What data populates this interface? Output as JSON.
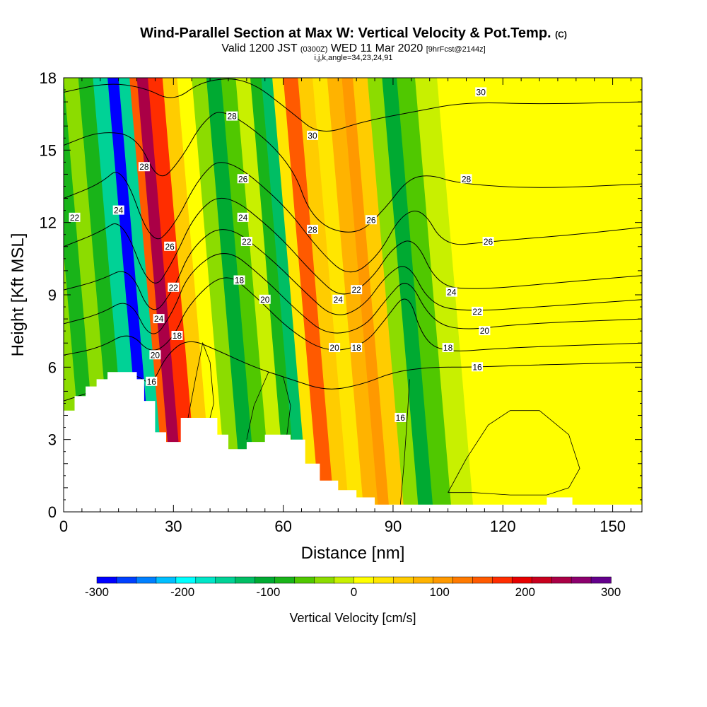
{
  "title": {
    "main": "Wind-Parallel Section at Max W: Vertical Velocity & Pot.Temp.",
    "main_unit": "(C)",
    "valid_prefix": "Valid 1200 JST",
    "valid_utc": "(0300Z)",
    "valid_date": "WED 11 Mar 2020",
    "fcst": "[9hrFcst@2144z]",
    "indices": "i,j,k,angle=34,23,24,91"
  },
  "chart_data": {
    "type": "heatmap",
    "xlabel": "Distance [nm]",
    "ylabel": "Height [Kft MSL]",
    "xlim": [
      0,
      158
    ],
    "ylim": [
      0,
      18
    ],
    "xticks": [
      "0",
      "30",
      "60",
      "90",
      "120",
      "150"
    ],
    "yticks": [
      "0",
      "3",
      "6",
      "9",
      "12",
      "15",
      "18"
    ],
    "colorbar": {
      "title": "Vertical Velocity [cm/s]",
      "range": [
        -300,
        300
      ],
      "tick_labels": [
        "-300",
        "-200",
        "-100",
        "0",
        "100",
        "200",
        "300"
      ],
      "colors": [
        "#0000ff",
        "#0040ff",
        "#0080ff",
        "#00bfff",
        "#00ffff",
        "#00e6c8",
        "#00d296",
        "#00be64",
        "#00aa32",
        "#19b419",
        "#50c800",
        "#8cdc00",
        "#c8f000",
        "#ffff00",
        "#ffe600",
        "#ffcc00",
        "#ffb300",
        "#ff9900",
        "#ff7a00",
        "#ff5a00",
        "#ff2d00",
        "#e60000",
        "#c8001e",
        "#aa0046",
        "#8c006e",
        "#64008c"
      ]
    },
    "velocity_bands": [
      {
        "x": 0,
        "w": -40
      },
      {
        "x": 6,
        "w": -70
      },
      {
        "x": 10,
        "w": -30
      },
      {
        "x": 14,
        "w": -90
      },
      {
        "x": 18,
        "w": -160
      },
      {
        "x": 22,
        "w": -280
      },
      {
        "x": 25,
        "w": -150
      },
      {
        "x": 28,
        "w": 150
      },
      {
        "x": 30,
        "w": 250
      },
      {
        "x": 33,
        "w": 170
      },
      {
        "x": 37,
        "w": 60
      },
      {
        "x": 41,
        "w": 20
      },
      {
        "x": 45,
        "w": -40
      },
      {
        "x": 49,
        "w": -110
      },
      {
        "x": 53,
        "w": -60
      },
      {
        "x": 57,
        "w": -20
      },
      {
        "x": 61,
        "w": -80
      },
      {
        "x": 64,
        "w": -130
      },
      {
        "x": 67,
        "w": 40
      },
      {
        "x": 70,
        "w": 150
      },
      {
        "x": 74,
        "w": 60
      },
      {
        "x": 78,
        "w": 30
      },
      {
        "x": 82,
        "w": 70
      },
      {
        "x": 86,
        "w": 110
      },
      {
        "x": 89,
        "w": 60
      },
      {
        "x": 93,
        "w": -30
      },
      {
        "x": 97,
        "w": -100
      },
      {
        "x": 101,
        "w": -60
      },
      {
        "x": 106,
        "w": -10
      },
      {
        "x": 112,
        "w": 5
      },
      {
        "x": 125,
        "w": 0
      },
      {
        "x": 140,
        "w": 10
      },
      {
        "x": 158,
        "w": 0
      }
    ],
    "terrain": [
      [
        0,
        4.2
      ],
      [
        3,
        4.2
      ],
      [
        3,
        4.8
      ],
      [
        6,
        4.8
      ],
      [
        6,
        5.2
      ],
      [
        9,
        5.2
      ],
      [
        9,
        5.5
      ],
      [
        12,
        5.5
      ],
      [
        12,
        5.8
      ],
      [
        20,
        5.8
      ],
      [
        20,
        5.5
      ],
      [
        22,
        5.5
      ],
      [
        22,
        4.6
      ],
      [
        25,
        4.6
      ],
      [
        25,
        3.3
      ],
      [
        28,
        3.3
      ],
      [
        28,
        2.9
      ],
      [
        32,
        2.9
      ],
      [
        32,
        3.9
      ],
      [
        42,
        3.9
      ],
      [
        42,
        3.2
      ],
      [
        45,
        3.2
      ],
      [
        45,
        2.6
      ],
      [
        50,
        2.6
      ],
      [
        50,
        2.9
      ],
      [
        55,
        2.9
      ],
      [
        55,
        3.2
      ],
      [
        62,
        3.2
      ],
      [
        62,
        3.0
      ],
      [
        66,
        3.0
      ],
      [
        66,
        2.0
      ],
      [
        70,
        2.0
      ],
      [
        70,
        1.3
      ],
      [
        75,
        1.3
      ],
      [
        75,
        0.9
      ],
      [
        80,
        0.9
      ],
      [
        80,
        0.6
      ],
      [
        85,
        0.6
      ],
      [
        85,
        0.3
      ],
      [
        132,
        0.3
      ],
      [
        132,
        0.6
      ],
      [
        139,
        0.6
      ],
      [
        139,
        0.3
      ],
      [
        158,
        0.3
      ]
    ],
    "theta_contours": [
      {
        "label": "16",
        "points": [
          [
            0,
            4.6
          ],
          [
            10,
            5.1
          ],
          [
            19,
            5.8
          ],
          [
            24,
            5.2
          ],
          [
            28,
            6.5
          ],
          [
            34,
            7.2
          ],
          [
            42,
            6.7
          ],
          [
            52,
            6.0
          ],
          [
            62,
            5.5
          ],
          [
            72,
            5.0
          ],
          [
            82,
            5.3
          ],
          [
            90,
            5.8
          ],
          [
            100,
            6.0
          ],
          [
            112,
            6.0
          ],
          [
            130,
            6.1
          ],
          [
            158,
            6.2
          ]
        ]
      },
      {
        "label": "18",
        "points": [
          [
            0,
            6.5
          ],
          [
            10,
            6.8
          ],
          [
            18,
            7.5
          ],
          [
            24,
            6.5
          ],
          [
            30,
            7.2
          ],
          [
            34,
            8.6
          ],
          [
            44,
            10.0
          ],
          [
            52,
            9.0
          ],
          [
            62,
            7.5
          ],
          [
            72,
            6.6
          ],
          [
            82,
            6.9
          ],
          [
            88,
            8.0
          ],
          [
            94,
            9.2
          ],
          [
            98,
            7.2
          ],
          [
            104,
            6.6
          ],
          [
            120,
            6.8
          ],
          [
            158,
            7.0
          ]
        ]
      },
      {
        "label": "20",
        "points": [
          [
            0,
            7.8
          ],
          [
            10,
            8.2
          ],
          [
            18,
            8.9
          ],
          [
            24,
            7.0
          ],
          [
            30,
            8.3
          ],
          [
            34,
            9.9
          ],
          [
            44,
            11.0
          ],
          [
            54,
            9.8
          ],
          [
            64,
            8.3
          ],
          [
            72,
            7.3
          ],
          [
            82,
            7.6
          ],
          [
            88,
            8.8
          ],
          [
            94,
            9.8
          ],
          [
            100,
            8.0
          ],
          [
            108,
            7.5
          ],
          [
            125,
            7.8
          ],
          [
            158,
            8.0
          ]
        ]
      },
      {
        "label": "22",
        "points": [
          [
            0,
            9.2
          ],
          [
            10,
            9.6
          ],
          [
            18,
            10.2
          ],
          [
            24,
            8.0
          ],
          [
            30,
            9.2
          ],
          [
            35,
            11.0
          ],
          [
            44,
            12.0
          ],
          [
            56,
            10.6
          ],
          [
            66,
            9.1
          ],
          [
            74,
            8.0
          ],
          [
            82,
            8.5
          ],
          [
            88,
            9.8
          ],
          [
            94,
            10.4
          ],
          [
            100,
            8.6
          ],
          [
            110,
            8.3
          ],
          [
            130,
            8.5
          ],
          [
            158,
            8.8
          ]
        ]
      },
      {
        "label": "24",
        "points": [
          [
            0,
            11.0
          ],
          [
            10,
            11.6
          ],
          [
            16,
            12.2
          ],
          [
            24,
            9.0
          ],
          [
            30,
            10.4
          ],
          [
            36,
            12.4
          ],
          [
            44,
            13.3
          ],
          [
            58,
            11.6
          ],
          [
            68,
            9.9
          ],
          [
            76,
            8.8
          ],
          [
            84,
            9.6
          ],
          [
            90,
            11.0
          ],
          [
            96,
            11.4
          ],
          [
            102,
            9.4
          ],
          [
            112,
            9.2
          ],
          [
            135,
            9.5
          ],
          [
            158,
            9.8
          ]
        ]
      },
      {
        "label": "26",
        "points": [
          [
            0,
            13.0
          ],
          [
            10,
            13.6
          ],
          [
            16,
            14.4
          ],
          [
            24,
            11.0
          ],
          [
            30,
            11.8
          ],
          [
            37,
            13.9
          ],
          [
            44,
            14.8
          ],
          [
            60,
            12.8
          ],
          [
            70,
            10.8
          ],
          [
            78,
            9.7
          ],
          [
            86,
            10.6
          ],
          [
            92,
            12.3
          ],
          [
            98,
            12.6
          ],
          [
            104,
            11.0
          ],
          [
            116,
            11.2
          ],
          [
            140,
            11.5
          ],
          [
            158,
            11.8
          ]
        ]
      },
      {
        "label": "28",
        "points": [
          [
            0,
            15.2
          ],
          [
            10,
            15.8
          ],
          [
            20,
            15.6
          ],
          [
            26,
            13.6
          ],
          [
            32,
            14.6
          ],
          [
            38,
            16.2
          ],
          [
            44,
            16.8
          ],
          [
            62,
            14.6
          ],
          [
            68,
            12.0
          ],
          [
            80,
            11.4
          ],
          [
            88,
            12.6
          ],
          [
            94,
            13.8
          ],
          [
            100,
            14.0
          ],
          [
            108,
            13.6
          ],
          [
            130,
            13.4
          ],
          [
            158,
            13.6
          ]
        ]
      },
      {
        "label": "30",
        "points": [
          [
            0,
            17.4
          ],
          [
            12,
            17.8
          ],
          [
            22,
            17.6
          ],
          [
            30,
            17.0
          ],
          [
            38,
            17.9
          ],
          [
            50,
            18.0
          ],
          [
            62,
            16.6
          ],
          [
            70,
            15.6
          ],
          [
            82,
            16.2
          ],
          [
            96,
            16.6
          ],
          [
            110,
            17.0
          ],
          [
            130,
            16.9
          ],
          [
            158,
            17.0
          ]
        ]
      }
    ],
    "contour_labels": [
      {
        "text": "22",
        "x": 3,
        "y": 12.2
      },
      {
        "text": "24",
        "x": 15,
        "y": 12.5
      },
      {
        "text": "28",
        "x": 22,
        "y": 14.3
      },
      {
        "text": "26",
        "x": 29,
        "y": 11.0
      },
      {
        "text": "22",
        "x": 30,
        "y": 9.3
      },
      {
        "text": "24",
        "x": 26,
        "y": 8.0
      },
      {
        "text": "18",
        "x": 31,
        "y": 7.3
      },
      {
        "text": "20",
        "x": 25,
        "y": 6.5
      },
      {
        "text": "16",
        "x": 24,
        "y": 5.4
      },
      {
        "text": "28",
        "x": 46,
        "y": 16.4
      },
      {
        "text": "26",
        "x": 49,
        "y": 13.8
      },
      {
        "text": "24",
        "x": 49,
        "y": 12.2
      },
      {
        "text": "22",
        "x": 50,
        "y": 11.2
      },
      {
        "text": "18",
        "x": 48,
        "y": 9.6
      },
      {
        "text": "20",
        "x": 55,
        "y": 8.8
      },
      {
        "text": "30",
        "x": 68,
        "y": 15.6
      },
      {
        "text": "28",
        "x": 68,
        "y": 11.7
      },
      {
        "text": "24",
        "x": 75,
        "y": 8.8
      },
      {
        "text": "22",
        "x": 80,
        "y": 9.2
      },
      {
        "text": "26",
        "x": 84,
        "y": 12.1
      },
      {
        "text": "20",
        "x": 74,
        "y": 6.8
      },
      {
        "text": "18",
        "x": 80,
        "y": 6.8
      },
      {
        "text": "16",
        "x": 92,
        "y": 3.9
      },
      {
        "text": "30",
        "x": 114,
        "y": 17.4
      },
      {
        "text": "28",
        "x": 110,
        "y": 13.8
      },
      {
        "text": "26",
        "x": 116,
        "y": 11.2
      },
      {
        "text": "24",
        "x": 106,
        "y": 9.1
      },
      {
        "text": "22",
        "x": 113,
        "y": 8.3
      },
      {
        "text": "20",
        "x": 115,
        "y": 7.5
      },
      {
        "text": "18",
        "x": 105,
        "y": 6.8
      },
      {
        "text": "16",
        "x": 113,
        "y": 6.0
      }
    ],
    "w_zero_contours": [
      {
        "points": [
          [
            34,
            3.9
          ],
          [
            36,
            5.5
          ],
          [
            38,
            7.0
          ],
          [
            40,
            6.2
          ],
          [
            41,
            4.5
          ],
          [
            40,
            3.9
          ]
        ]
      },
      {
        "points": [
          [
            50,
            3.0
          ],
          [
            52,
            4.4
          ],
          [
            56,
            5.8
          ],
          [
            60,
            5.6
          ],
          [
            62,
            4.4
          ],
          [
            61,
            3.2
          ]
        ]
      },
      {
        "points": [
          [
            105,
            0.8
          ],
          [
            110,
            2.2
          ],
          [
            116,
            3.6
          ],
          [
            122,
            4.2
          ],
          [
            130,
            4.2
          ],
          [
            138,
            3.2
          ],
          [
            141,
            1.8
          ],
          [
            138,
            1.0
          ],
          [
            132,
            0.7
          ],
          [
            122,
            0.7
          ],
          [
            112,
            0.8
          ],
          [
            105,
            0.8
          ]
        ]
      },
      {
        "points": [
          [
            92,
            0.3
          ],
          [
            93,
            2.0
          ],
          [
            94,
            4.2
          ],
          [
            94.5,
            5.5
          ]
        ]
      }
    ]
  }
}
